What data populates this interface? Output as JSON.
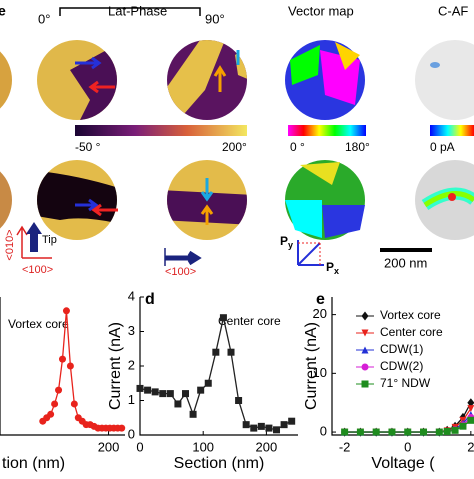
{
  "figure": {
    "head_e": "e",
    "deg0": "0°",
    "lat_phase": "Lat-Phase",
    "deg90": "90°",
    "vector_map": "Vector map",
    "cafm": "C-AF",
    "cbar1_min": "-50 °",
    "cbar1_max": "200°",
    "cbar2_min": "0 °",
    "cbar2_max": "180°",
    "cbar3_min": "0 pA",
    "dir_010a": "<010>",
    "dir_100a": "<100>",
    "tip": "Tip",
    "dir_100b": "<100>",
    "py": "P",
    "py_sub": "y",
    "px": "P",
    "px_sub": "x",
    "scale": "200 nm",
    "letter_d": "d",
    "letter_e": "e"
  },
  "chart_data": [
    {
      "type": "line",
      "annotation": "Vortex core",
      "xlabel": "tion (nm)",
      "color": "#e8231c",
      "x": [
        0,
        12,
        24,
        36,
        48,
        60,
        72,
        84,
        96,
        108,
        120,
        132,
        144,
        156,
        168,
        180,
        192,
        204,
        216,
        228,
        240
      ],
      "values": [
        0.4,
        0.5,
        0.6,
        0.9,
        1.3,
        2.2,
        3.6,
        2.0,
        0.9,
        0.5,
        0.4,
        0.3,
        0.3,
        0.25,
        0.2,
        0.2,
        0.2,
        0.2,
        0.2,
        0.2,
        0.2
      ],
      "xlim": [
        -130,
        250
      ],
      "ylim": [
        0,
        4
      ],
      "xticks": [
        200
      ]
    },
    {
      "type": "line",
      "annotation": "Center core",
      "xlabel": "Section (nm)",
      "ylabel": "Current (nA)",
      "color": "#222222",
      "x": [
        0,
        12,
        24,
        36,
        48,
        60,
        72,
        84,
        96,
        108,
        120,
        132,
        144,
        156,
        168,
        180,
        192,
        204,
        216,
        228,
        240
      ],
      "values": [
        1.35,
        1.3,
        1.25,
        1.2,
        1.2,
        0.9,
        1.2,
        0.6,
        1.3,
        1.5,
        2.4,
        3.4,
        2.4,
        1.0,
        0.3,
        0.2,
        0.25,
        0.2,
        0.15,
        0.3,
        0.4
      ],
      "xlim": [
        0,
        250
      ],
      "ylim": [
        0,
        4
      ],
      "xticks": [
        0,
        100,
        200
      ],
      "yticks": [
        0,
        1,
        2,
        3,
        4
      ]
    },
    {
      "type": "line",
      "xlabel": "Voltage (",
      "ylabel": "Current (nA)",
      "x": [
        -2,
        -1.5,
        -1,
        -0.5,
        0,
        0.5,
        1,
        1.25,
        1.5,
        1.75,
        2
      ],
      "series": [
        {
          "name": "Vortex core",
          "color": "#111111",
          "marker": "diamond",
          "values": [
            0,
            0,
            0,
            0,
            0,
            0,
            0,
            0.3,
            1,
            2.5,
            5
          ]
        },
        {
          "name": "Center core",
          "color": "#e8231c",
          "marker": "tri-down",
          "values": [
            0,
            0,
            0,
            0,
            0,
            0,
            0,
            0.2,
            0.8,
            2,
            4
          ]
        },
        {
          "name": "CDW(1)",
          "color": "#2330d6",
          "marker": "tri-up",
          "values": [
            0,
            0,
            0,
            0,
            0,
            0,
            0,
            0.1,
            0.5,
            1.5,
            3
          ]
        },
        {
          "name": "CDW(2)",
          "color": "#d61fd6",
          "marker": "circle",
          "values": [
            0,
            0,
            0,
            0,
            0,
            0,
            0,
            0.1,
            0.4,
            1.2,
            2.5
          ]
        },
        {
          "name": "71° NDW",
          "color": "#1e8c1e",
          "marker": "square",
          "values": [
            0,
            0,
            0,
            0,
            0,
            0,
            0,
            0.1,
            0.3,
            1,
            2
          ]
        }
      ],
      "xlim": [
        -2.4,
        2.1
      ],
      "ylim": [
        -0.5,
        23
      ],
      "xticks": [
        -2,
        0,
        2
      ],
      "yticks": [
        0,
        10,
        20
      ]
    }
  ]
}
